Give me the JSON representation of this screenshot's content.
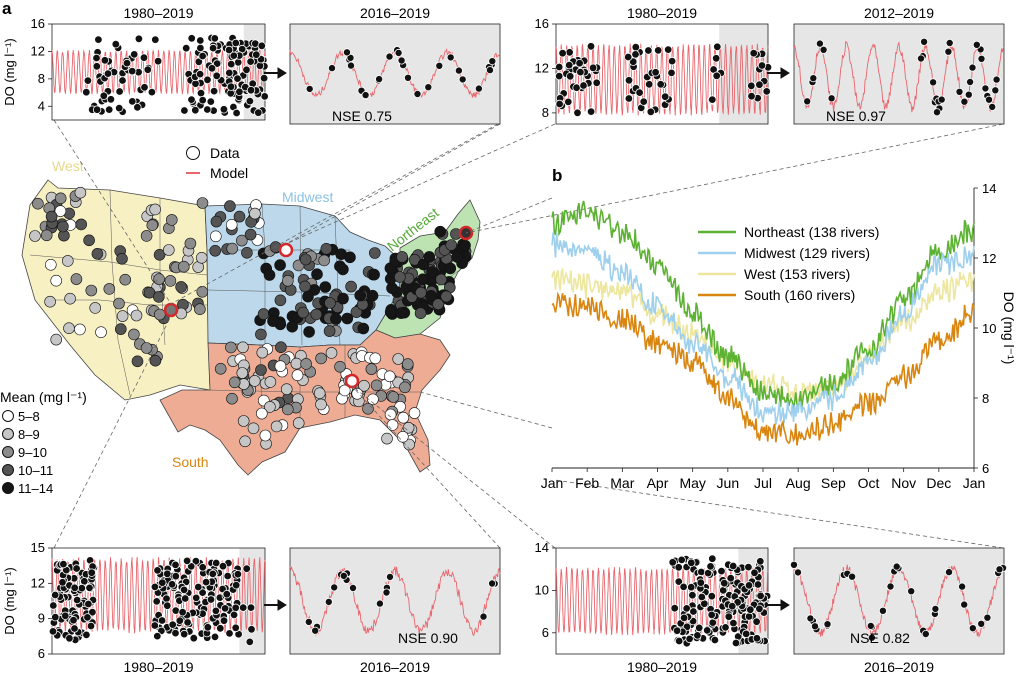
{
  "panel_a_label": "a",
  "panel_b_label": "b",
  "legend_data": "Data",
  "legend_model": "Model",
  "region_labels": {
    "west": "West",
    "midwest": "Midwest",
    "northeast": "Northeast",
    "south": "South"
  },
  "mean_legend": {
    "title": "Mean (mg l⁻¹)",
    "items": [
      "5–8",
      "8–9",
      "9–10",
      "10–11",
      "11–14"
    ]
  },
  "colors": {
    "model": "#e8666d",
    "west_fill": "#f7f0c3",
    "midwest_fill": "#bcd8ea",
    "northeast_fill": "#bde3b3",
    "south_fill": "#eeac94",
    "northeast_line": "#5db234",
    "midwest_line": "#9ed0ee",
    "west_line": "#ece69e",
    "south_line": "#d98610",
    "inset_bg": "#e6e6e6",
    "mean_scale": [
      "#ffffff",
      "#c6c6c6",
      "#8c8c8c",
      "#545454",
      "#161616"
    ]
  },
  "chart_data": [
    {
      "type": "line",
      "name": "northwest-long",
      "title": "1980–2019",
      "ylabel": "DO (mg l⁻¹)",
      "ylim": [
        2,
        16
      ],
      "yticks": [
        4,
        8,
        12,
        16
      ],
      "series": [
        {
          "name": "Model",
          "range_mg_l": [
            6,
            12
          ]
        },
        {
          "name": "Data",
          "range_mg_l": [
            3,
            14
          ]
        }
      ]
    },
    {
      "type": "line",
      "name": "northwest-zoom",
      "title": "2016–2019",
      "annotation": "NSE 0.75",
      "ylim": [
        2,
        16
      ],
      "series": [
        {
          "name": "Model",
          "range_mg_l": [
            6,
            12
          ]
        },
        {
          "name": "Data",
          "range_mg_l": [
            5,
            14
          ]
        }
      ]
    },
    {
      "type": "line",
      "name": "northeast-long",
      "title": "1980–2019",
      "ylim": [
        7,
        16
      ],
      "yticks": [
        8,
        12,
        16
      ],
      "series": [
        {
          "name": "Model",
          "range_mg_l": [
            8,
            14
          ]
        },
        {
          "name": "Data",
          "range_mg_l": [
            8,
            14
          ]
        }
      ]
    },
    {
      "type": "line",
      "name": "northeast-zoom",
      "title": "2012–2019",
      "annotation": "NSE 0.97",
      "ylim": [
        7,
        16
      ],
      "series": [
        {
          "name": "Model",
          "range_mg_l": [
            8.5,
            14
          ]
        },
        {
          "name": "Data",
          "range_mg_l": [
            8.5,
            14
          ]
        }
      ]
    },
    {
      "type": "line",
      "name": "southwest-long",
      "xlabel": "1980–2019",
      "ylabel": "DO (mg l⁻¹)",
      "ylim": [
        6,
        15
      ],
      "yticks": [
        6,
        9,
        12,
        15
      ],
      "series": [
        {
          "name": "Model",
          "range_mg_l": [
            8,
            14
          ]
        },
        {
          "name": "Data",
          "range_mg_l": [
            7,
            14
          ]
        }
      ]
    },
    {
      "type": "line",
      "name": "southwest-zoom",
      "xlabel": "2016–2019",
      "annotation": "NSE 0.90",
      "ylim": [
        6,
        15
      ],
      "series": [
        {
          "name": "Model",
          "range_mg_l": [
            8,
            13
          ]
        },
        {
          "name": "Data",
          "range_mg_l": [
            8,
            13
          ]
        }
      ]
    },
    {
      "type": "line",
      "name": "southeast-long",
      "xlabel": "1980–2019",
      "ylim": [
        4,
        14
      ],
      "yticks": [
        6,
        10,
        14
      ],
      "series": [
        {
          "name": "Model",
          "range_mg_l": [
            6,
            12
          ]
        },
        {
          "name": "Data",
          "range_mg_l": [
            5,
            13
          ]
        }
      ]
    },
    {
      "type": "line",
      "name": "southeast-zoom",
      "xlabel": "2016–2019",
      "annotation": "NSE 0.82",
      "ylim": [
        4,
        14
      ],
      "series": [
        {
          "name": "Model",
          "range_mg_l": [
            6,
            12
          ]
        },
        {
          "name": "Data",
          "range_mg_l": [
            5,
            12
          ]
        }
      ]
    },
    {
      "type": "line",
      "name": "seasonal-do",
      "title": "",
      "xlabel": "",
      "ylabel": "DO (mg l⁻¹)",
      "ylim": [
        6,
        14
      ],
      "yticks": [
        6,
        8,
        10,
        12,
        14
      ],
      "categories": [
        "Jan",
        "Feb",
        "Mar",
        "Apr",
        "May",
        "Jun",
        "Jul",
        "Aug",
        "Sep",
        "Oct",
        "Nov",
        "Dec",
        "Jan"
      ],
      "series": [
        {
          "name": "Northeast (138 rivers)",
          "values": [
            13.0,
            13.3,
            12.8,
            11.8,
            10.4,
            9.2,
            8.2,
            8.0,
            8.4,
            9.4,
            10.8,
            12.2,
            12.8
          ]
        },
        {
          "name": "Midwest (129 rivers)",
          "values": [
            12.4,
            12.2,
            11.6,
            10.6,
            9.6,
            8.6,
            7.6,
            7.6,
            8.0,
            9.0,
            10.4,
            11.8,
            12.0
          ]
        },
        {
          "name": "West (153 rivers)",
          "values": [
            11.4,
            11.2,
            11.0,
            10.4,
            9.8,
            9.0,
            8.4,
            8.2,
            8.3,
            9.2,
            10.2,
            11.0,
            11.4
          ]
        },
        {
          "name": "South (160 rivers)",
          "values": [
            10.8,
            10.6,
            10.2,
            9.6,
            9.0,
            8.0,
            7.0,
            6.9,
            7.3,
            7.8,
            8.6,
            9.6,
            10.4
          ]
        }
      ]
    }
  ]
}
